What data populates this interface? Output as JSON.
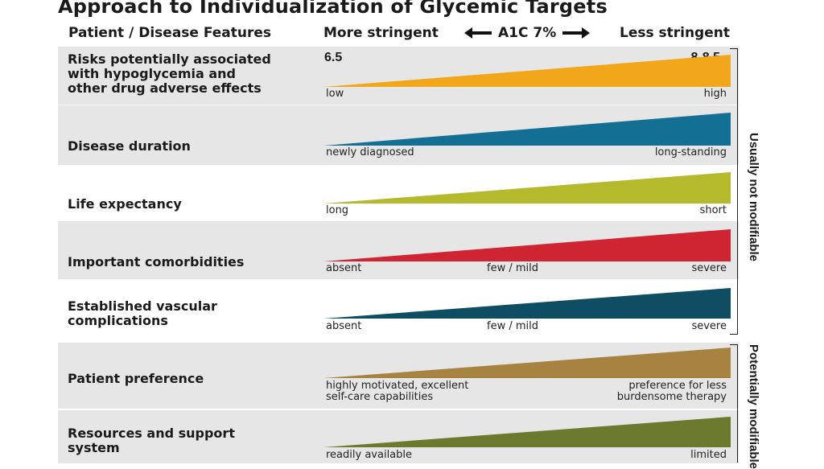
{
  "title": "Approach to Individualization of Glycemic Targets",
  "header": {
    "features": "Patient / Disease Features",
    "more": "More stringent",
    "a1c": "A1C 7%",
    "less": "Less stringent"
  },
  "corners": {
    "left": "6.5",
    "right": "8-8.5"
  },
  "rows": [
    {
      "label": "Risks potentially associated\nwith hypoglycemia and\nother drug adverse effects",
      "left": "low",
      "mid": "",
      "right": "high",
      "color": "#f2a71b"
    },
    {
      "label": "Disease duration",
      "left": "newly diagnosed",
      "mid": "",
      "right": "long-standing",
      "color": "#146f94"
    },
    {
      "label": "Life expectancy",
      "left": "long",
      "mid": "",
      "right": "short",
      "color": "#b5ba2d"
    },
    {
      "label": "Important comorbidities",
      "left": "absent",
      "mid": "few / mild",
      "right": "severe",
      "color": "#cf2431"
    },
    {
      "label": "Established vascular\ncomplications",
      "left": "absent",
      "mid": "few / mild",
      "right": "severe",
      "color": "#0f4d63"
    },
    {
      "label": "Patient preference",
      "left": "highly motivated, excellent\nself-care capabilities",
      "mid": "",
      "right": "preference for less\nburdensome therapy",
      "color": "#a88240"
    },
    {
      "label": "Resources and support\nsystem",
      "left": "readily available",
      "mid": "",
      "right": "limited",
      "color": "#6b7a2f"
    }
  ],
  "groups": {
    "not_modifiable": "Usually not modifiable",
    "modifiable": "Potentially modifiable"
  }
}
